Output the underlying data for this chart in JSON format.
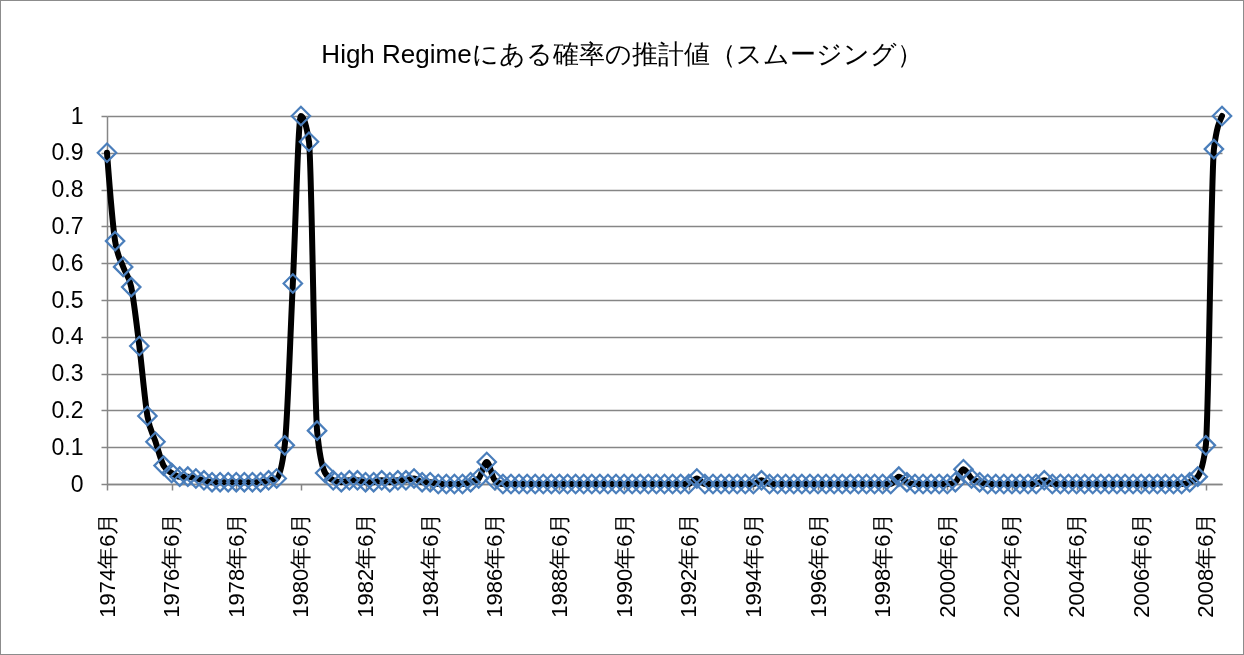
{
  "chart_data": {
    "type": "line",
    "title": "High Regimeにある確率の推計値（スムージング）",
    "categories": [
      "1974年6月",
      null,
      null,
      null,
      null,
      null,
      null,
      null,
      "1976年6月",
      null,
      null,
      null,
      null,
      null,
      null,
      null,
      "1978年6月",
      null,
      null,
      null,
      null,
      null,
      null,
      null,
      "1980年6月",
      null,
      null,
      null,
      null,
      null,
      null,
      null,
      "1982年6月",
      null,
      null,
      null,
      null,
      null,
      null,
      null,
      "1984年6月",
      null,
      null,
      null,
      null,
      null,
      null,
      null,
      "1986年6月",
      null,
      null,
      null,
      null,
      null,
      null,
      null,
      "1988年6月",
      null,
      null,
      null,
      null,
      null,
      null,
      null,
      "1990年6月",
      null,
      null,
      null,
      null,
      null,
      null,
      null,
      "1992年6月",
      null,
      null,
      null,
      null,
      null,
      null,
      null,
      "1994年6月",
      null,
      null,
      null,
      null,
      null,
      null,
      null,
      "1996年6月",
      null,
      null,
      null,
      null,
      null,
      null,
      null,
      "1998年6月",
      null,
      null,
      null,
      null,
      null,
      null,
      null,
      "2000年6月",
      null,
      null,
      null,
      null,
      null,
      null,
      null,
      "2002年6月",
      null,
      null,
      null,
      null,
      null,
      null,
      null,
      "2004年6月",
      null,
      null,
      null,
      null,
      null,
      null,
      null,
      "2006年6月",
      null,
      null,
      null,
      null,
      null,
      null,
      null,
      "2008年6月",
      null,
      null
    ],
    "series": [
      {
        "color": "#000000",
        "values": [
          0.9,
          0.66,
          0.59,
          0.535,
          0.375,
          0.185,
          0.115,
          0.05,
          0.03,
          0.02,
          0.02,
          0.015,
          0.01,
          0.005,
          0.005,
          0.005,
          0.005,
          0.005,
          0.005,
          0.005,
          0.01,
          0.015,
          0.105,
          0.545,
          1,
          0.93,
          0.145,
          0.03,
          0.01,
          0.005,
          0.01,
          0.01,
          0.005,
          0.005,
          0.01,
          0.005,
          0.01,
          0.01,
          0.015,
          0.005,
          0.005,
          0,
          0,
          0,
          0,
          0.005,
          0.015,
          0.06,
          0.01,
          0,
          0,
          0,
          0,
          0,
          0,
          0,
          0,
          0,
          0,
          0,
          0,
          0,
          0,
          0,
          0,
          0,
          0,
          0,
          0,
          0,
          0,
          0,
          0,
          0.015,
          0,
          0,
          0,
          0,
          0,
          0,
          0,
          0.01,
          0,
          0,
          0,
          0,
          0,
          0,
          0,
          0,
          0,
          0,
          0,
          0,
          0,
          0,
          0,
          0,
          0.02,
          0.005,
          0,
          0,
          0,
          0,
          0,
          0.005,
          0.04,
          0.015,
          0.005,
          0,
          0,
          0,
          0,
          0,
          0,
          0,
          0.01,
          0,
          0,
          0,
          0,
          0,
          0,
          0,
          0,
          0,
          0,
          0,
          0,
          0,
          0,
          0,
          0,
          0,
          0.005,
          0.02,
          0.105,
          0.91,
          1
        ]
      }
    ],
    "ylim": [
      0,
      1
    ],
    "yticks": [
      0,
      0.1,
      0.2,
      0.3,
      0.4,
      0.5,
      0.6,
      0.7,
      0.8,
      0.9,
      1
    ],
    "grid": "y",
    "marker": "diamond",
    "line_style": "solid"
  }
}
